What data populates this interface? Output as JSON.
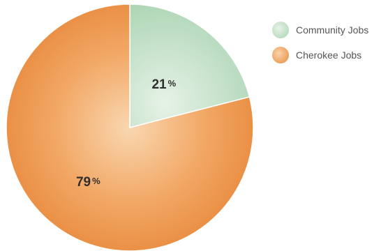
{
  "chart_data": {
    "type": "pie",
    "title": "",
    "categories": [
      "Community Jobs",
      "Cherokee Jobs"
    ],
    "values": [
      21,
      79
    ],
    "labels": [
      "21%",
      "79%"
    ],
    "colors": [
      "#b9dcc1",
      "#f0a05c"
    ],
    "legend": "right"
  }
}
